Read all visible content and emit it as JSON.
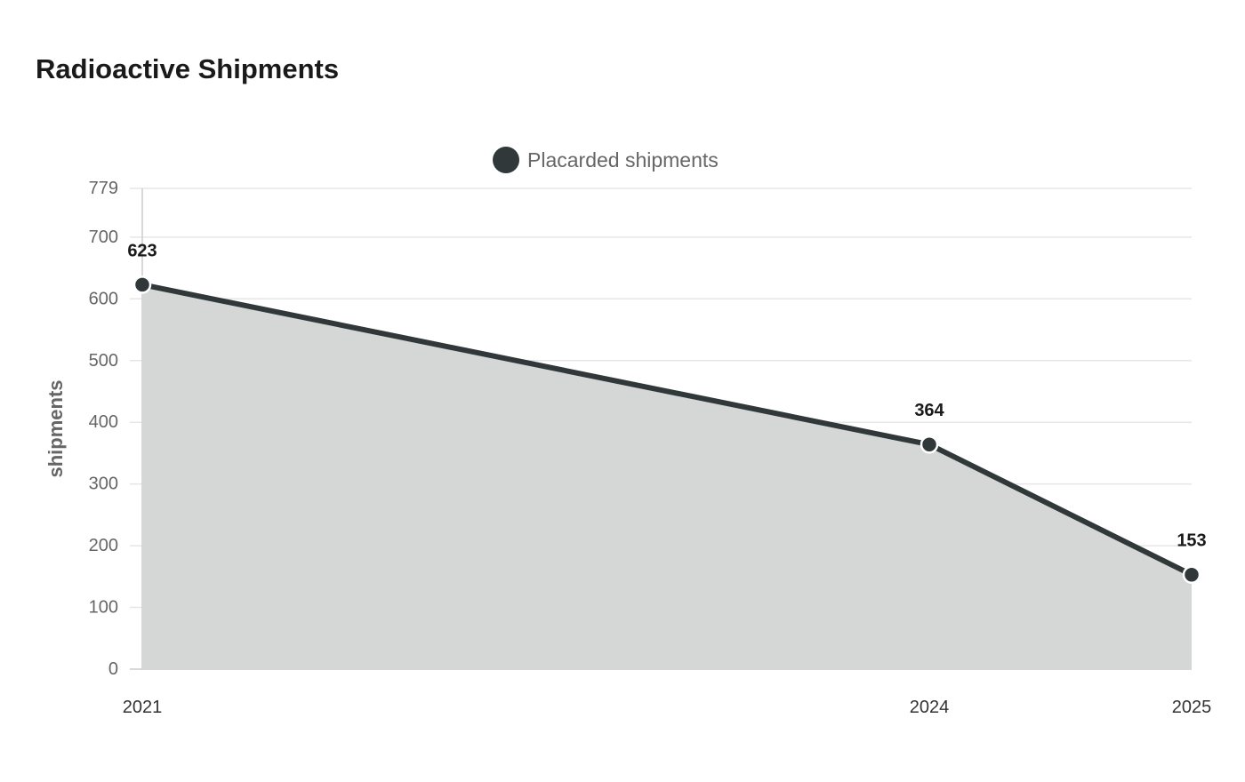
{
  "colors": {
    "series": "#30383a",
    "area": "#d5d6d6",
    "grid": "#e6e6e6",
    "axis": "#cccccc",
    "tick_text": "#666666",
    "label_text": "#1a1a1a"
  },
  "chart_data": {
    "type": "area",
    "title": "Radioactive Shipments",
    "xlabel": "",
    "ylabel": "shipments",
    "x": [
      "2021",
      "2024",
      "2025"
    ],
    "x_numeric": [
      2021,
      2024,
      2025
    ],
    "ylim": [
      0,
      779
    ],
    "yticks": [
      0,
      100,
      200,
      300,
      400,
      500,
      600,
      700,
      779
    ],
    "grid": true,
    "legend_position": "top-center",
    "series": [
      {
        "name": "Placarded shipments",
        "values": [
          623,
          364,
          153
        ],
        "data_labels": [
          "623",
          "364",
          "153"
        ]
      }
    ]
  }
}
